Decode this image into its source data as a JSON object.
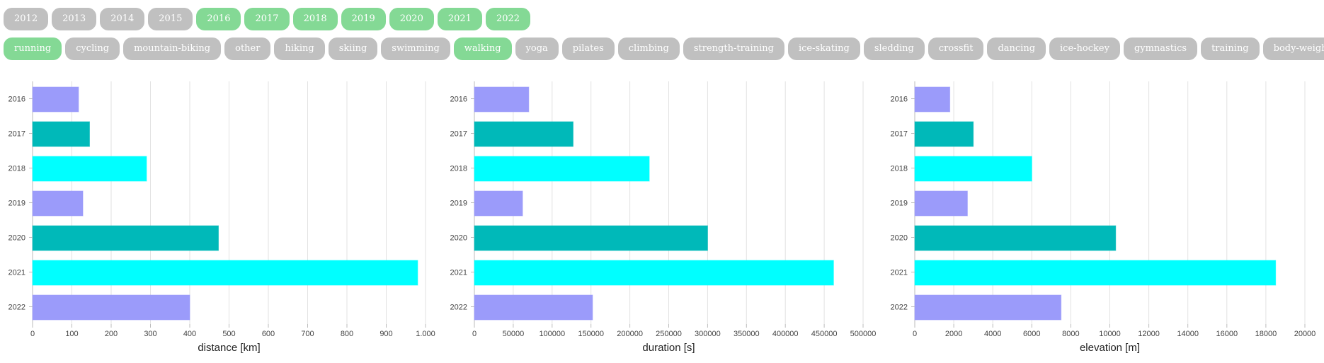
{
  "years": [
    {
      "label": "2012",
      "active": false
    },
    {
      "label": "2013",
      "active": false
    },
    {
      "label": "2014",
      "active": false
    },
    {
      "label": "2015",
      "active": false
    },
    {
      "label": "2016",
      "active": true
    },
    {
      "label": "2017",
      "active": true
    },
    {
      "label": "2018",
      "active": true
    },
    {
      "label": "2019",
      "active": true
    },
    {
      "label": "2020",
      "active": true
    },
    {
      "label": "2021",
      "active": true
    },
    {
      "label": "2022",
      "active": true
    }
  ],
  "activities": [
    {
      "label": "running",
      "active": true
    },
    {
      "label": "cycling",
      "active": false
    },
    {
      "label": "mountain-biking",
      "active": false
    },
    {
      "label": "other",
      "active": false
    },
    {
      "label": "hiking",
      "active": false
    },
    {
      "label": "skiing",
      "active": false
    },
    {
      "label": "swimming",
      "active": false
    },
    {
      "label": "walking",
      "active": true
    },
    {
      "label": "yoga",
      "active": false
    },
    {
      "label": "pilates",
      "active": false
    },
    {
      "label": "climbing",
      "active": false
    },
    {
      "label": "strength-training",
      "active": false
    },
    {
      "label": "ice-skating",
      "active": false
    },
    {
      "label": "sledding",
      "active": false
    },
    {
      "label": "crossfit",
      "active": false
    },
    {
      "label": "dancing",
      "active": false
    },
    {
      "label": "ice-hockey",
      "active": false
    },
    {
      "label": "gymnastics",
      "active": false
    },
    {
      "label": "training",
      "active": false
    },
    {
      "label": "body-weight training",
      "active": false
    }
  ],
  "colors": {
    "pill_on": "#84d995",
    "pill_off": "#c0c0c0",
    "bar_cycle": [
      "#9b9bfa",
      "#00b9b9",
      "#00ffff"
    ]
  },
  "chart_data": [
    {
      "type": "bar",
      "orientation": "horizontal",
      "categories": [
        "2016",
        "2017",
        "2018",
        "2019",
        "2020",
        "2021",
        "2022"
      ],
      "values": [
        117,
        145,
        290,
        128,
        473,
        980,
        400
      ],
      "xlabel": "distance [km]",
      "xlim": [
        0,
        1000
      ],
      "xticks": [
        0,
        100,
        200,
        300,
        400,
        500,
        600,
        700,
        800,
        900,
        1000
      ],
      "xtick_labels": [
        "0",
        "100",
        "200",
        "300",
        "400",
        "500",
        "600",
        "700",
        "800",
        "900",
        "1.000"
      ],
      "grid": true
    },
    {
      "type": "bar",
      "orientation": "horizontal",
      "categories": [
        "2016",
        "2017",
        "2018",
        "2019",
        "2020",
        "2021",
        "2022"
      ],
      "values": [
        70000,
        127000,
        225000,
        62000,
        300000,
        462000,
        152000
      ],
      "xlabel": "duration [s]",
      "xlim": [
        0,
        500000
      ],
      "xticks": [
        0,
        50000,
        100000,
        150000,
        200000,
        250000,
        300000,
        350000,
        400000,
        450000,
        500000
      ],
      "xtick_labels": [
        "0",
        "50000",
        "100000",
        "150000",
        "200000",
        "250000",
        "300000",
        "350000",
        "400000",
        "450000",
        "500000"
      ],
      "grid": true
    },
    {
      "type": "bar",
      "orientation": "horizontal",
      "categories": [
        "2016",
        "2017",
        "2018",
        "2019",
        "2020",
        "2021",
        "2022"
      ],
      "values": [
        1800,
        3000,
        6000,
        2700,
        10300,
        18500,
        7500
      ],
      "xlabel": "elevation [m]",
      "xlim": [
        0,
        20000
      ],
      "xticks": [
        0,
        2000,
        4000,
        6000,
        8000,
        10000,
        12000,
        14000,
        16000,
        18000,
        20000
      ],
      "xtick_labels": [
        "0",
        "2000",
        "4000",
        "6000",
        "8000",
        "10000",
        "12000",
        "14000",
        "16000",
        "18000",
        "20000"
      ],
      "grid": true
    }
  ]
}
